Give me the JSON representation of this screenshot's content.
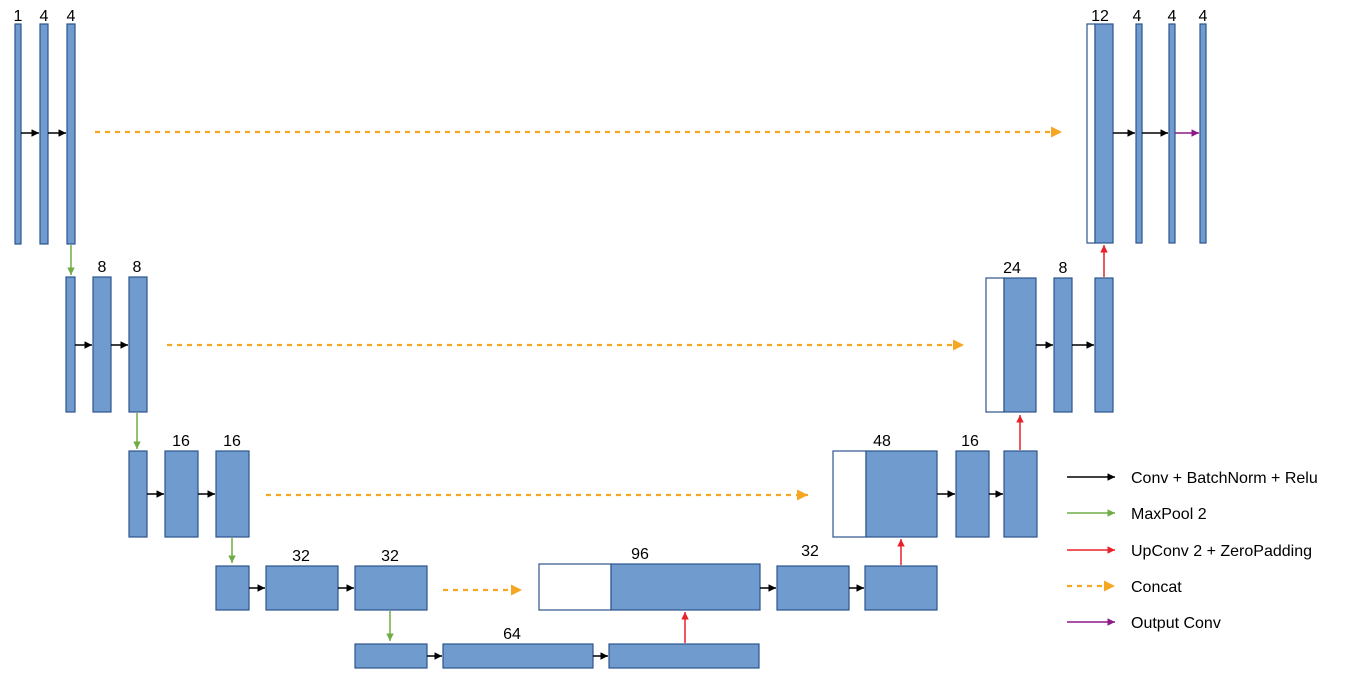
{
  "colors": {
    "block_fill": "#6f9bcf",
    "block_stroke": "#2d548c",
    "conv": "#000000",
    "maxpool": "#70ad47",
    "upconv": "#e8202a",
    "concat": "#f5a623",
    "output": "#8b1a8b"
  },
  "channel_labels": {
    "l1_a": "1",
    "l1_b": "4",
    "l1_c": "4",
    "l2_b": "8",
    "l2_c": "8",
    "l3_b": "16",
    "l3_c": "16",
    "l4_b": "32",
    "l4_c": "32",
    "l5_b": "64",
    "d4_cat": "96",
    "d4_b": "32",
    "d3_cat": "48",
    "d3_b": "16",
    "d2_cat": "24",
    "d2_b": "8",
    "d1_cat": "12",
    "d1_b": "4",
    "d1_c": "4",
    "d1_out": "4"
  },
  "legend": [
    {
      "label": "Conv + BatchNorm + Relu",
      "kind": "conv"
    },
    {
      "label": "MaxPool 2",
      "kind": "maxpool"
    },
    {
      "label": "UpConv 2 + ZeroPadding",
      "kind": "upconv"
    },
    {
      "label": "Concat",
      "kind": "concat"
    },
    {
      "label": "Output Conv",
      "kind": "output"
    }
  ]
}
